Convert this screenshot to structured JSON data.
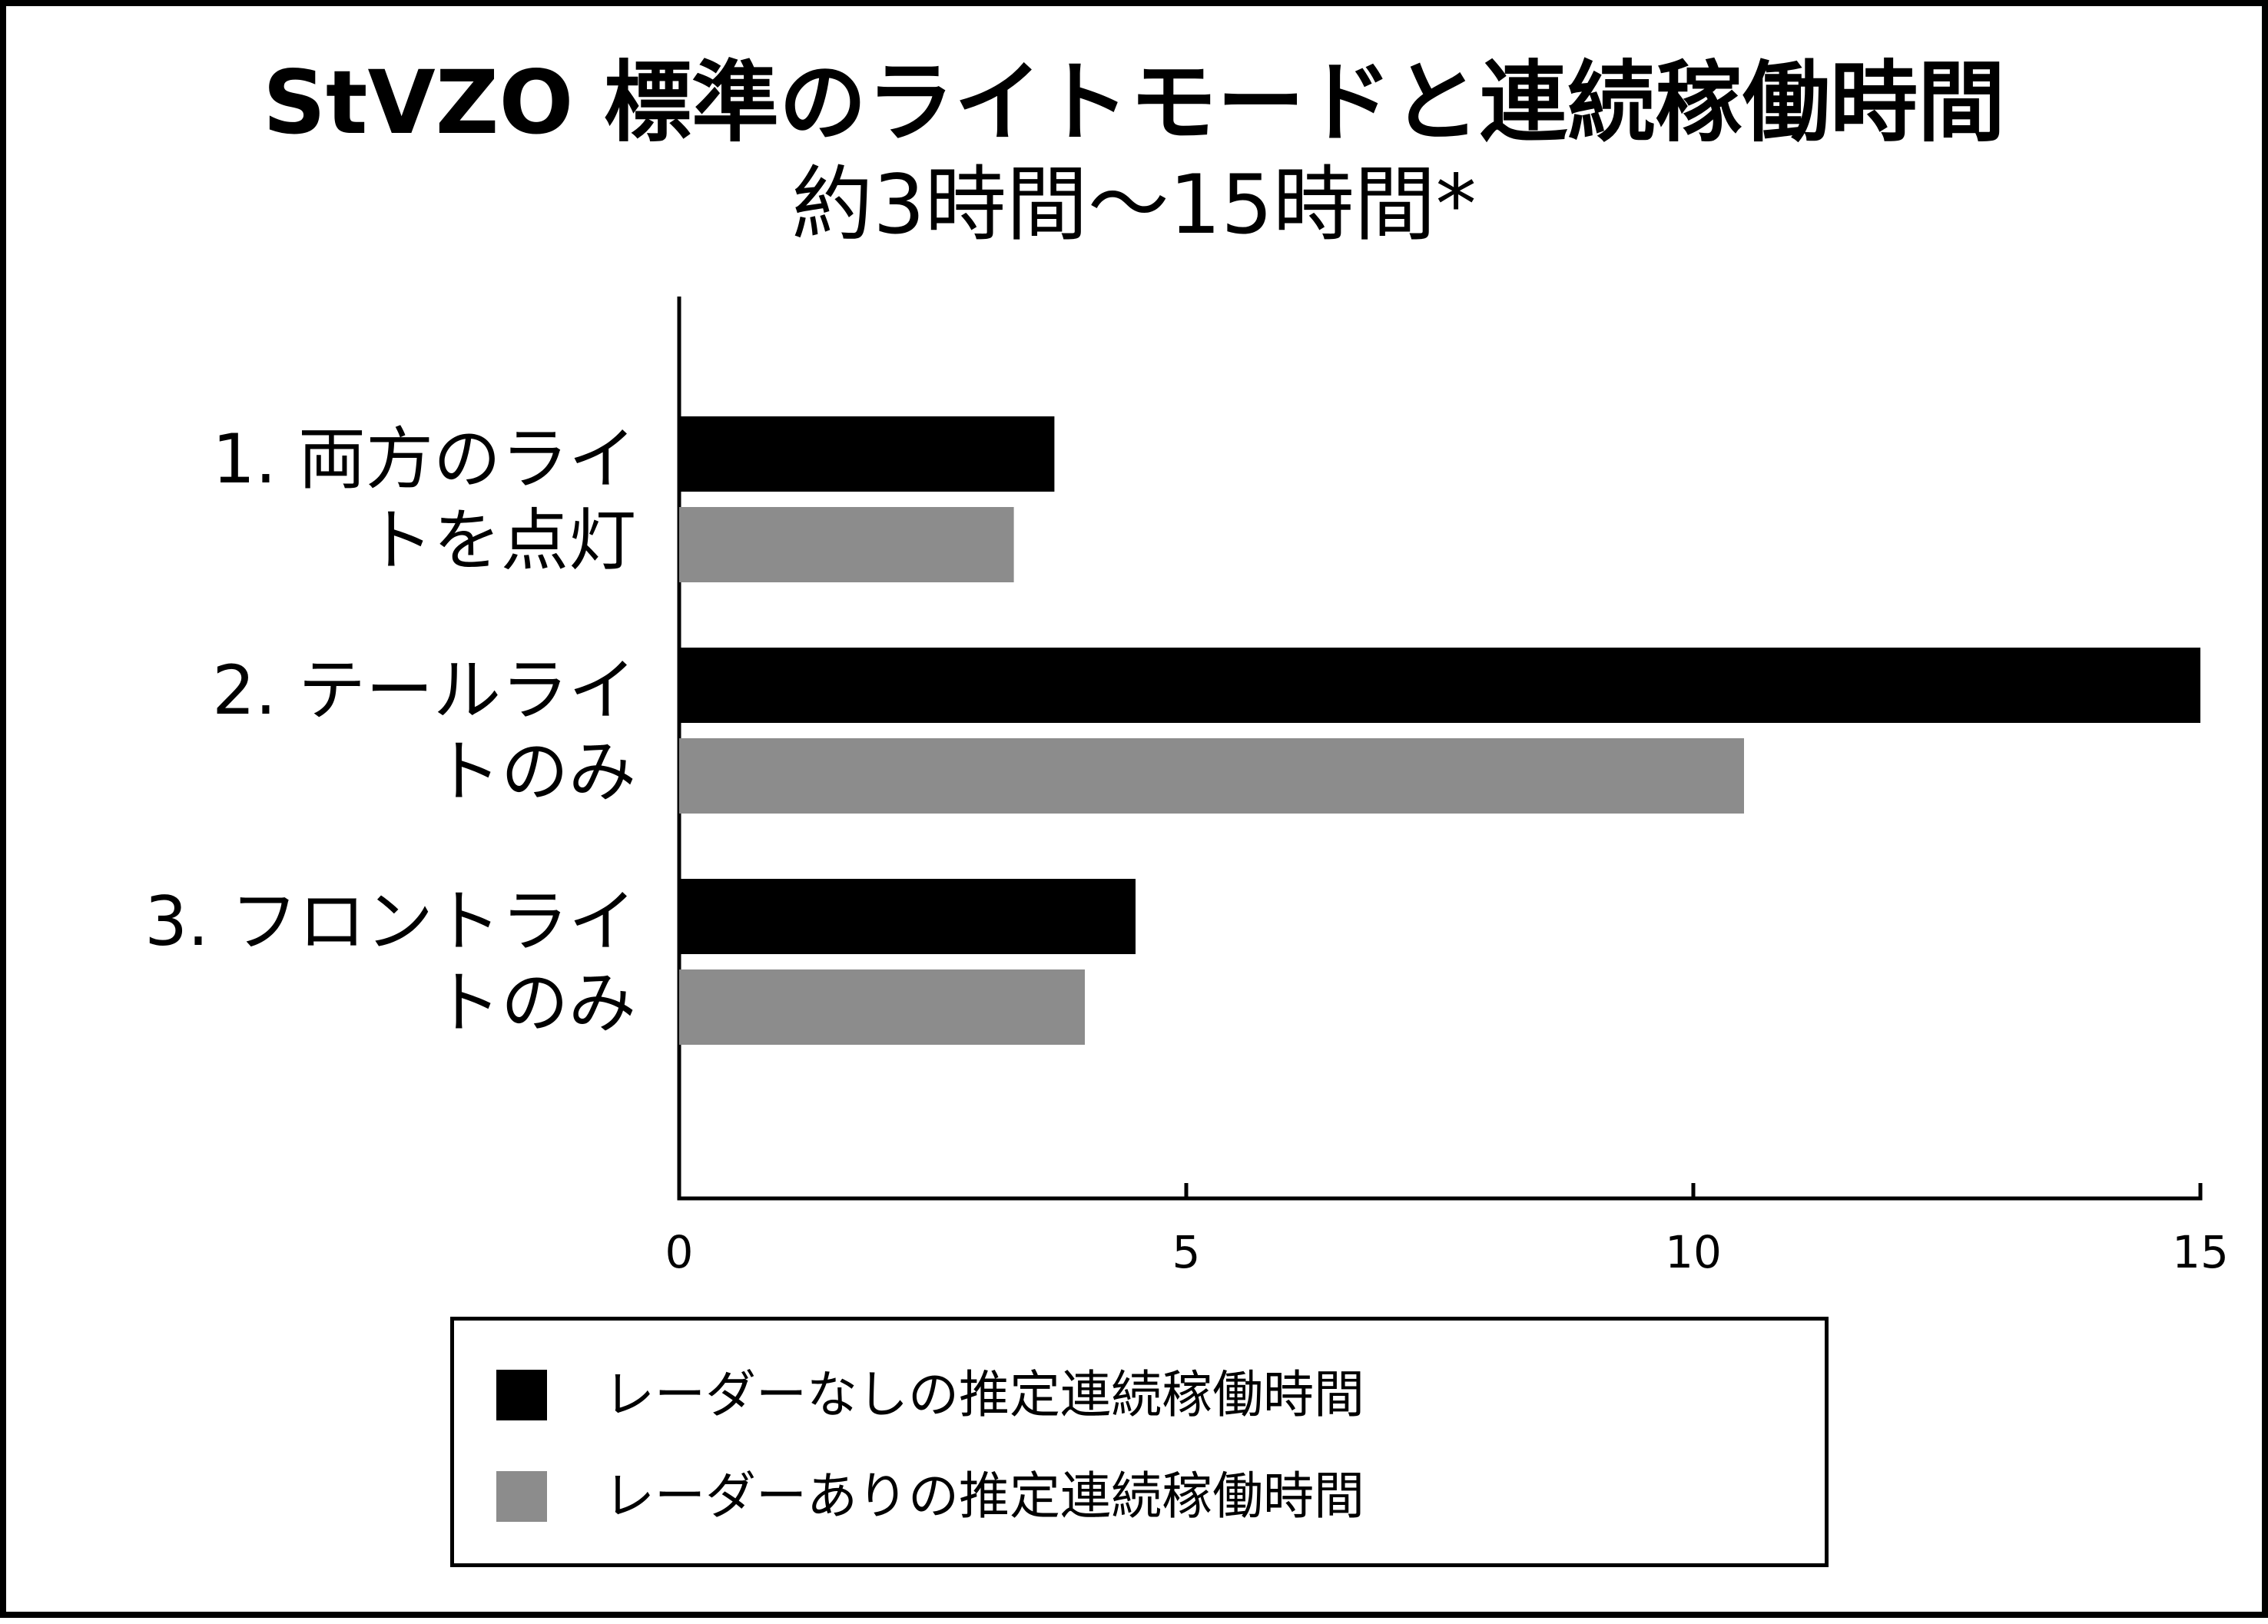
{
  "chart_data": {
    "type": "bar",
    "orientation": "horizontal",
    "title": "StVZO 標準のライトモードと連続稼働時間",
    "subtitle": "約3時間〜15時間*",
    "categories": [
      [
        "1. 両方のライ",
        "トを点灯"
      ],
      [
        "2. テールライ",
        "トのみ"
      ],
      [
        "3. フロントライ",
        "トのみ"
      ]
    ],
    "series": [
      {
        "name": "レーダーなしの推定連続稼働時間",
        "color": "#000000",
        "values": [
          3.7,
          15.0,
          4.5
        ]
      },
      {
        "name": "レーダーありの推定連続稼働時間",
        "color": "#8c8c8c",
        "values": [
          3.3,
          10.5,
          4.0
        ]
      }
    ],
    "xlim": [
      0,
      15
    ],
    "xticks": [
      0,
      5,
      10,
      15
    ],
    "xlabel": "",
    "ylabel": "",
    "grid": false,
    "legend_position": "bottom"
  }
}
